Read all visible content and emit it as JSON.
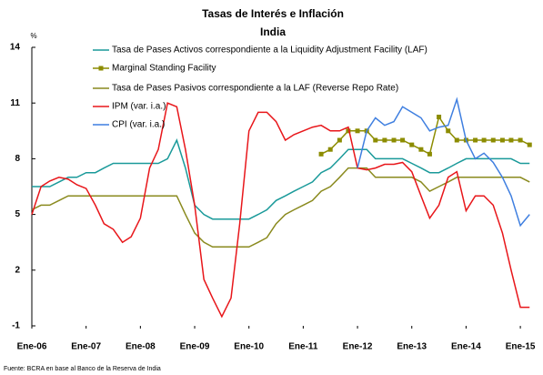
{
  "chart_data": {
    "type": "line",
    "title": "Tasas de Interés e Inflación",
    "subtitle": "India",
    "y_unit": "%",
    "source": "Fuente: BCRA en base al Banco de la Reserva de India",
    "x": [
      2006,
      2006.17,
      2006.33,
      2006.5,
      2006.67,
      2006.83,
      2007,
      2007.17,
      2007.33,
      2007.5,
      2007.67,
      2007.83,
      2008,
      2008.17,
      2008.33,
      2008.5,
      2008.67,
      2008.83,
      2009,
      2009.17,
      2009.33,
      2009.5,
      2009.67,
      2009.83,
      2010,
      2010.17,
      2010.33,
      2010.5,
      2010.67,
      2010.83,
      2011,
      2011.17,
      2011.33,
      2011.5,
      2011.67,
      2011.83,
      2012,
      2012.17,
      2012.33,
      2012.5,
      2012.67,
      2012.83,
      2013,
      2013.17,
      2013.33,
      2013.5,
      2013.67,
      2013.83,
      2014,
      2014.17,
      2014.33,
      2014.5,
      2014.67,
      2014.83,
      2015,
      2015.17
    ],
    "xlim": [
      2006,
      2015.3
    ],
    "xticks": [
      {
        "value": 2006,
        "label": "Ene-06"
      },
      {
        "value": 2007,
        "label": "Ene-07"
      },
      {
        "value": 2008,
        "label": "Ene-08"
      },
      {
        "value": 2009,
        "label": "Ene-09"
      },
      {
        "value": 2010,
        "label": "Ene-10"
      },
      {
        "value": 2011,
        "label": "Ene-11"
      },
      {
        "value": 2012,
        "label": "Ene-12"
      },
      {
        "value": 2013,
        "label": "Ene-13"
      },
      {
        "value": 2014,
        "label": "Ene-14"
      },
      {
        "value": 2015,
        "label": "Ene-15"
      }
    ],
    "ylim": [
      -1,
      14
    ],
    "yticks": [
      -1,
      2,
      5,
      8,
      11,
      14
    ],
    "grid": false,
    "series": [
      {
        "name": "Tasa de Pases Activos correspondiente a la Liquidity Adjustment Facility (LAF)",
        "color": "#1a9a9a",
        "marker": false,
        "values": [
          6.5,
          6.5,
          6.5,
          6.75,
          7.0,
          7.0,
          7.25,
          7.25,
          7.5,
          7.75,
          7.75,
          7.75,
          7.75,
          7.75,
          7.75,
          8.0,
          9.0,
          7.5,
          5.5,
          5.0,
          4.75,
          4.75,
          4.75,
          4.75,
          4.75,
          5.0,
          5.25,
          5.75,
          6.0,
          6.25,
          6.5,
          6.75,
          7.25,
          7.5,
          8.0,
          8.5,
          8.5,
          8.5,
          8.0,
          8.0,
          8.0,
          8.0,
          7.75,
          7.5,
          7.25,
          7.25,
          7.5,
          7.75,
          8.0,
          8.0,
          8.0,
          8.0,
          8.0,
          8.0,
          7.75,
          7.75
        ]
      },
      {
        "name": "Marginal Standing Facility",
        "color": "#8c8c00",
        "marker": true,
        "values": [
          null,
          null,
          null,
          null,
          null,
          null,
          null,
          null,
          null,
          null,
          null,
          null,
          null,
          null,
          null,
          null,
          null,
          null,
          null,
          null,
          null,
          null,
          null,
          null,
          null,
          null,
          null,
          null,
          null,
          null,
          null,
          null,
          8.25,
          8.5,
          9.0,
          9.5,
          9.5,
          9.5,
          9.0,
          9.0,
          9.0,
          9.0,
          8.75,
          8.5,
          8.25,
          10.25,
          9.5,
          9.0,
          9.0,
          9.0,
          9.0,
          9.0,
          9.0,
          9.0,
          9.0,
          8.75
        ]
      },
      {
        "name": "Tasa de Pases Pasivos correspondiente a la LAF (Reverse Repo Rate)",
        "color": "#8a8a1e",
        "marker": false,
        "values": [
          5.25,
          5.5,
          5.5,
          5.75,
          6.0,
          6.0,
          6.0,
          6.0,
          6.0,
          6.0,
          6.0,
          6.0,
          6.0,
          6.0,
          6.0,
          6.0,
          6.0,
          5.0,
          4.0,
          3.5,
          3.25,
          3.25,
          3.25,
          3.25,
          3.25,
          3.5,
          3.75,
          4.5,
          5.0,
          5.25,
          5.5,
          5.75,
          6.25,
          6.5,
          7.0,
          7.5,
          7.5,
          7.5,
          7.0,
          7.0,
          7.0,
          7.0,
          7.0,
          6.75,
          6.25,
          6.5,
          6.75,
          7.0,
          7.0,
          7.0,
          7.0,
          7.0,
          7.0,
          7.0,
          7.0,
          6.75
        ]
      },
      {
        "name": "IPM (var. i.a.)",
        "color": "#e8161a",
        "marker": false,
        "values": [
          5.0,
          6.5,
          6.8,
          7.0,
          6.9,
          6.6,
          6.4,
          5.5,
          4.5,
          4.2,
          3.5,
          3.8,
          4.8,
          7.5,
          8.5,
          11.0,
          10.8,
          8.5,
          5.5,
          1.5,
          0.5,
          -0.5,
          0.5,
          4.5,
          9.5,
          10.5,
          10.5,
          10.0,
          9.0,
          9.3,
          9.5,
          9.7,
          9.8,
          9.5,
          9.5,
          9.7,
          7.5,
          7.4,
          7.5,
          7.7,
          7.7,
          7.8,
          7.3,
          6.0,
          4.8,
          5.5,
          7.0,
          7.3,
          5.2,
          6.0,
          6.0,
          5.5,
          4.0,
          2.0,
          0.0,
          0.0
        ]
      },
      {
        "name": "CPI (var. i.a.)",
        "color": "#3f7fe0",
        "marker": false,
        "values": [
          null,
          null,
          null,
          null,
          null,
          null,
          null,
          null,
          null,
          null,
          null,
          null,
          null,
          null,
          null,
          null,
          null,
          null,
          null,
          null,
          null,
          null,
          null,
          null,
          null,
          null,
          null,
          null,
          null,
          null,
          null,
          null,
          null,
          null,
          null,
          null,
          7.5,
          9.5,
          10.2,
          9.8,
          10.0,
          10.8,
          10.5,
          10.2,
          9.5,
          9.7,
          9.8,
          11.2,
          9.0,
          8.0,
          8.3,
          7.8,
          7.0,
          6.0,
          4.4,
          5.0
        ]
      }
    ]
  }
}
